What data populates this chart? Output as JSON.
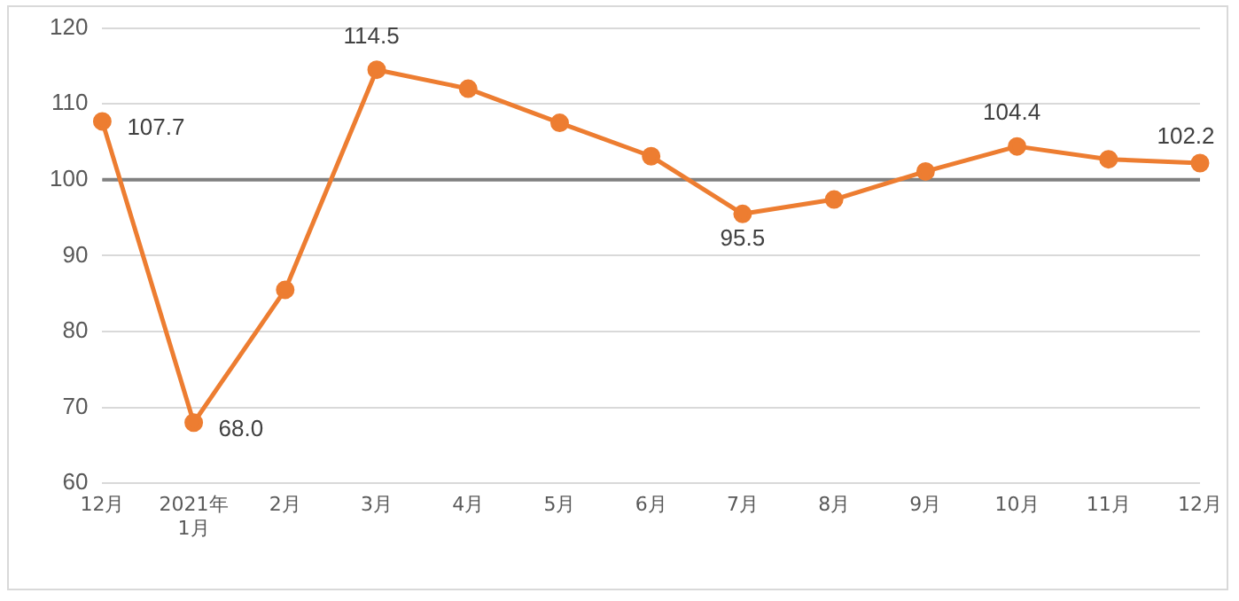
{
  "chart_data": {
    "type": "line",
    "categories": [
      "12月",
      "2021年\n1月",
      "2月",
      "3月",
      "4月",
      "5月",
      "6月",
      "7月",
      "8月",
      "9月",
      "10月",
      "11月",
      "12月"
    ],
    "series": [
      {
        "color": "#ed7d31",
        "values": [
          107.7,
          68.0,
          85.5,
          114.5,
          112.0,
          107.5,
          103.1,
          95.5,
          97.4,
          101.1,
          104.4,
          102.7,
          102.2
        ],
        "value_labels": [
          "107.7",
          "68.0",
          null,
          "114.5",
          null,
          null,
          null,
          "95.5",
          null,
          null,
          "104.4",
          null,
          "102.2"
        ]
      }
    ],
    "ylim": [
      60,
      120
    ],
    "yticks": [
      60,
      70,
      80,
      90,
      100,
      110,
      120
    ],
    "grid": "y",
    "legend": false,
    "marker": "circle",
    "line_style": "solid",
    "ref_lines": [
      {
        "axis": "y",
        "value": 100,
        "color": "#808080"
      }
    ]
  }
}
